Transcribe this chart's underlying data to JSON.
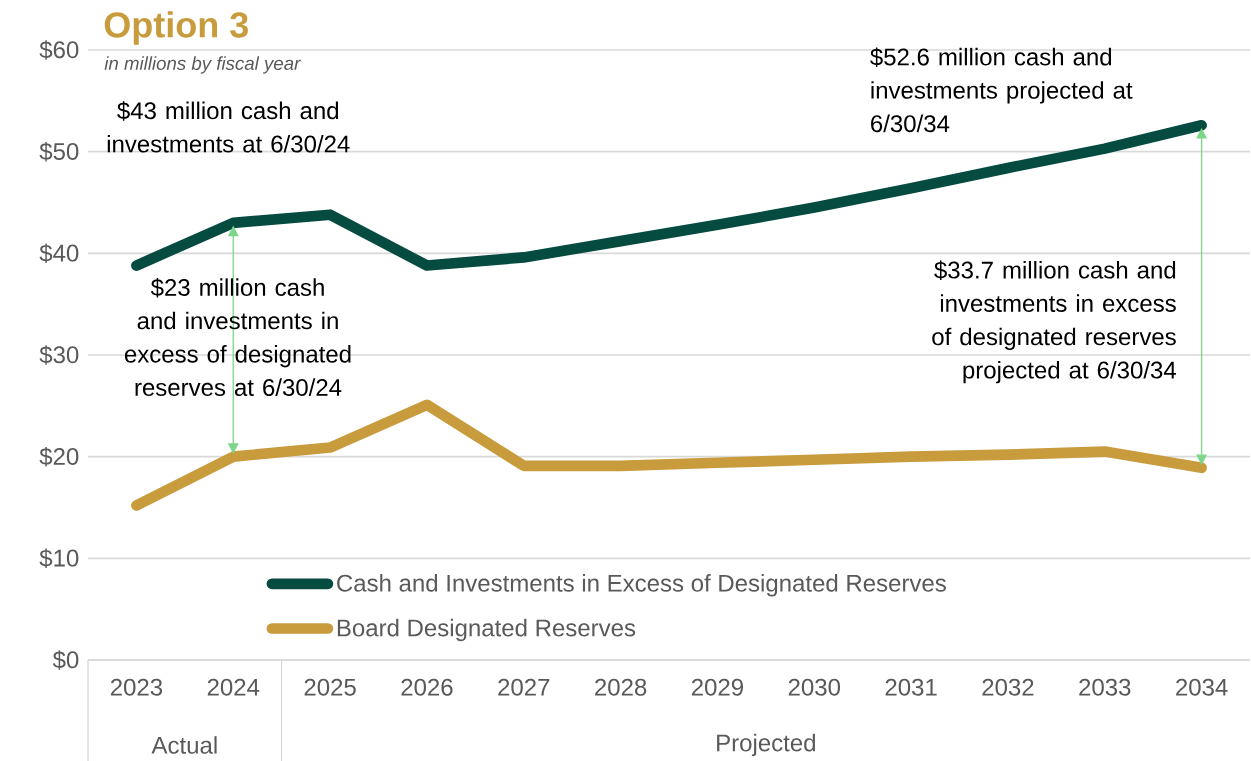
{
  "chart_data": {
    "type": "line",
    "title": "Option 3",
    "subtitle": "in millions by fiscal year",
    "categories": [
      "2023",
      "2024",
      "2025",
      "2026",
      "2027",
      "2028",
      "2029",
      "2030",
      "2031",
      "2032",
      "2033",
      "2034"
    ],
    "series": [
      {
        "name": "Cash and Investments in Excess of Designated Reserves",
        "color": "#054b40",
        "values": [
          38.8,
          43,
          43.8,
          38.8,
          39.6,
          41.2,
          42.8,
          44.5,
          46.4,
          48.4,
          50.3,
          52.6
        ]
      },
      {
        "name": "Board Designated Reserves",
        "color": "#c89b3c",
        "values": [
          15.2,
          20,
          20.9,
          25.1,
          19.1,
          19.1,
          19.4,
          19.7,
          20,
          20.2,
          20.5,
          18.9
        ]
      }
    ],
    "ylim": [
      0,
      60
    ],
    "yticks": [
      {
        "value": 0,
        "label": "$0"
      },
      {
        "value": 10,
        "label": "$10"
      },
      {
        "value": 20,
        "label": "$20"
      },
      {
        "value": 30,
        "label": "$30"
      },
      {
        "value": 40,
        "label": "$40"
      },
      {
        "value": 50,
        "label": "$50"
      },
      {
        "value": 60,
        "label": "$60"
      }
    ],
    "grid": "y",
    "legend": "bottom",
    "marker": "none",
    "line_style": "solid",
    "annotations": [
      {
        "text": "$43 million cash and investments at 6/30/24",
        "x": "2024",
        "y": 43
      },
      {
        "text": "$52.6 million cash and investments projected at 6/30/34",
        "x": "2034",
        "y": 52.6
      },
      "$23 million cash and investments in excess of designated reserves at 6/30/24",
      "$33.7 million cash and investments in excess of designated reserves projected at 6/30/34",
      "Actual",
      "Projected"
    ]
  }
}
